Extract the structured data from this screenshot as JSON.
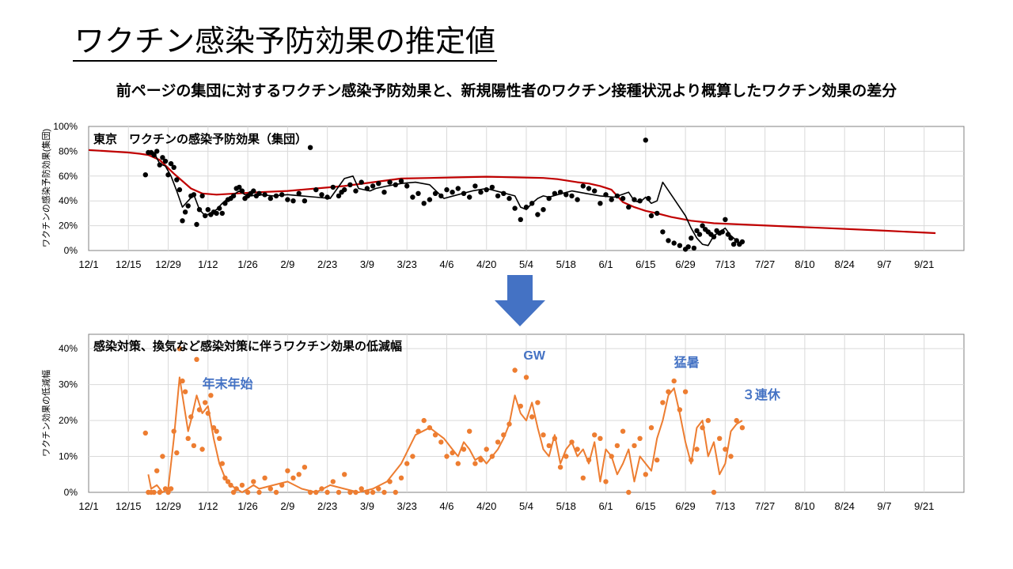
{
  "slide": {
    "title": "ワクチン感染予防効果の推定値",
    "subtitle": "前ページの集団に対するワクチン感染予防効果と、新規陽性者のワクチン接種状況より概算したワクチン効果の差分"
  },
  "colors": {
    "trend_red": "#c00000",
    "points_black": "#000000",
    "orange": "#ed7d31",
    "annotation_blue": "#4472c4",
    "arrow_blue": "#4472c4"
  },
  "arrow": {
    "icon": "down-arrow-icon"
  },
  "chart_data": [
    {
      "type": "line",
      "title": "東京　ワクチンの感染予防効果（集団）",
      "ylabel": "ワクチンの感染予防効果(集団)",
      "xlabel": "",
      "categories": [
        "12/1",
        "12/15",
        "12/29",
        "1/12",
        "1/26",
        "2/9",
        "2/23",
        "3/9",
        "3/23",
        "4/6",
        "4/20",
        "5/4",
        "5/18",
        "6/1",
        "6/15",
        "6/29",
        "7/13",
        "7/27",
        "8/10",
        "8/24",
        "9/7",
        "9/21"
      ],
      "y_ticks": [
        "0%",
        "20%",
        "40%",
        "60%",
        "80%",
        "100%"
      ],
      "ylim": [
        0,
        1
      ],
      "grid": true,
      "legend": "none",
      "series": [
        {
          "style": "line-red",
          "x": [
            0,
            14,
            18,
            21,
            25,
            30,
            36,
            40,
            45,
            52,
            60,
            70,
            80,
            90,
            100,
            110,
            120,
            130,
            140,
            150,
            160,
            165,
            172,
            176,
            180,
            184,
            188,
            192,
            196,
            200,
            205,
            212,
            220,
            240,
            260,
            280,
            298
          ],
          "values": [
            0.81,
            0.79,
            0.78,
            0.77,
            0.73,
            0.62,
            0.5,
            0.46,
            0.45,
            0.46,
            0.47,
            0.48,
            0.5,
            0.52,
            0.55,
            0.58,
            0.585,
            0.59,
            0.595,
            0.59,
            0.585,
            0.575,
            0.55,
            0.54,
            0.52,
            0.49,
            0.39,
            0.35,
            0.32,
            0.3,
            0.27,
            0.24,
            0.22,
            0.2,
            0.18,
            0.16,
            0.14
          ]
        },
        {
          "style": "line-black",
          "x": [
            21,
            23,
            25,
            27,
            29,
            31,
            33,
            35,
            37,
            39,
            41,
            43,
            45,
            47,
            49,
            51,
            53,
            55,
            57,
            60,
            65,
            70,
            75,
            80,
            85,
            90,
            93,
            95,
            97,
            99,
            101,
            105,
            110,
            115,
            120,
            125,
            130,
            135,
            140,
            145,
            150,
            152,
            154,
            156,
            158,
            160,
            162,
            165,
            170,
            175,
            180,
            185,
            190,
            192,
            194,
            196,
            198,
            200,
            202,
            205,
            210,
            212,
            214,
            216,
            218,
            220,
            222,
            224,
            226,
            228,
            230
          ],
          "values": [
            0.78,
            0.79,
            0.7,
            0.68,
            0.6,
            0.48,
            0.35,
            0.4,
            0.45,
            0.33,
            0.28,
            0.3,
            0.33,
            0.38,
            0.42,
            0.45,
            0.48,
            0.45,
            0.44,
            0.45,
            0.44,
            0.45,
            0.44,
            0.43,
            0.42,
            0.58,
            0.6,
            0.5,
            0.49,
            0.48,
            0.5,
            0.52,
            0.54,
            0.55,
            0.53,
            0.42,
            0.45,
            0.48,
            0.5,
            0.47,
            0.44,
            0.35,
            0.33,
            0.38,
            0.42,
            0.44,
            0.43,
            0.45,
            0.48,
            0.46,
            0.44,
            0.43,
            0.47,
            0.4,
            0.39,
            0.43,
            0.38,
            0.4,
            0.55,
            0.45,
            0.28,
            0.18,
            0.1,
            0.05,
            0.04,
            0.12,
            0.15,
            0.18,
            0.12,
            0.08,
            0.05
          ]
        },
        {
          "style": "points-black",
          "x": [
            20,
            21,
            22,
            23,
            24,
            25,
            26,
            27,
            28,
            29,
            30,
            31,
            32,
            33,
            34,
            35,
            36,
            37,
            38,
            39,
            40,
            41,
            42,
            43,
            44,
            45,
            46,
            47,
            48,
            49,
            50,
            51,
            52,
            53,
            54,
            55,
            56,
            57,
            58,
            59,
            60,
            62,
            64,
            66,
            68,
            70,
            72,
            74,
            76,
            78,
            80,
            82,
            84,
            86,
            88,
            89,
            90,
            92,
            94,
            96,
            98,
            100,
            102,
            104,
            106,
            108,
            110,
            112,
            114,
            116,
            118,
            120,
            122,
            124,
            126,
            128,
            130,
            132,
            134,
            136,
            138,
            140,
            142,
            144,
            146,
            148,
            150,
            152,
            154,
            156,
            158,
            160,
            162,
            164,
            166,
            168,
            170,
            172,
            174,
            176,
            178,
            180,
            182,
            184,
            186,
            188,
            190,
            192,
            194,
            196,
            197,
            198,
            200,
            202,
            204,
            206,
            208,
            210,
            211,
            212,
            213,
            214,
            215,
            216,
            217,
            218,
            219,
            220,
            221,
            222,
            223,
            224,
            225,
            226,
            227,
            228,
            229,
            230
          ],
          "values": [
            0.61,
            0.79,
            0.79,
            0.77,
            0.8,
            0.69,
            0.75,
            0.72,
            0.61,
            0.7,
            0.67,
            0.57,
            0.49,
            0.24,
            0.31,
            0.36,
            0.44,
            0.45,
            0.21,
            0.33,
            0.44,
            0.28,
            0.33,
            0.29,
            0.31,
            0.3,
            0.34,
            0.3,
            0.38,
            0.41,
            0.42,
            0.44,
            0.5,
            0.51,
            0.48,
            0.42,
            0.44,
            0.46,
            0.48,
            0.44,
            0.46,
            0.45,
            0.42,
            0.44,
            0.45,
            0.41,
            0.4,
            0.46,
            0.4,
            0.83,
            0.49,
            0.45,
            0.43,
            0.51,
            0.44,
            0.47,
            0.49,
            0.53,
            0.48,
            0.55,
            0.5,
            0.52,
            0.54,
            0.47,
            0.55,
            0.53,
            0.56,
            0.52,
            0.43,
            0.46,
            0.38,
            0.41,
            0.46,
            0.44,
            0.49,
            0.47,
            0.5,
            0.46,
            0.43,
            0.52,
            0.47,
            0.49,
            0.51,
            0.44,
            0.46,
            0.42,
            0.34,
            0.25,
            0.35,
            0.38,
            0.29,
            0.33,
            0.42,
            0.46,
            0.47,
            0.45,
            0.44,
            0.41,
            0.52,
            0.5,
            0.48,
            0.38,
            0.45,
            0.41,
            0.44,
            0.42,
            0.35,
            0.41,
            0.4,
            0.89,
            0.42,
            0.28,
            0.3,
            0.15,
            0.08,
            0.06,
            0.04,
            0.01,
            0.03,
            0.1,
            0.02,
            0.16,
            0.13,
            0.2,
            0.17,
            0.15,
            0.13,
            0.11,
            0.16,
            0.14,
            0.15,
            0.25,
            0.13,
            0.1,
            0.05,
            0.08,
            0.05,
            0.07
          ]
        }
      ]
    },
    {
      "type": "line",
      "title": "感染対策、換気など感染対策に伴うワクチン効果の低減幅",
      "ylabel": "ワクチン効果の低減幅",
      "xlabel": "",
      "categories": [
        "12/1",
        "12/15",
        "12/29",
        "1/12",
        "1/26",
        "2/9",
        "2/23",
        "3/9",
        "3/23",
        "4/6",
        "4/20",
        "5/4",
        "5/18",
        "6/1",
        "6/15",
        "6/29",
        "7/13",
        "7/27",
        "8/10",
        "8/24",
        "9/7",
        "9/21"
      ],
      "y_ticks": [
        "0%",
        "10%",
        "20%",
        "30%",
        "40%"
      ],
      "ylim": [
        0,
        0.44
      ],
      "grid": true,
      "legend": "none",
      "annotations": [
        {
          "text": "年末年始",
          "x": 40,
          "y": 0.29
        },
        {
          "text": "GW",
          "x": 153,
          "y": 0.37
        },
        {
          "text": "猛暑",
          "x": 206,
          "y": 0.35
        },
        {
          "text": "３連休",
          "x": 230,
          "y": 0.26
        }
      ],
      "series": [
        {
          "style": "line-orange",
          "x": [
            21,
            22,
            24,
            26,
            28,
            30,
            32,
            34,
            35,
            36,
            38,
            40,
            42,
            44,
            46,
            48,
            50,
            52,
            54,
            56,
            58,
            60,
            65,
            70,
            75,
            80,
            85,
            90,
            95,
            100,
            105,
            110,
            115,
            120,
            125,
            128,
            130,
            132,
            134,
            136,
            138,
            140,
            142,
            144,
            146,
            148,
            150,
            152,
            154,
            156,
            158,
            160,
            162,
            164,
            166,
            168,
            170,
            172,
            174,
            176,
            178,
            180,
            182,
            184,
            186,
            188,
            190,
            192,
            194,
            196,
            198,
            200,
            202,
            204,
            206,
            208,
            210,
            212,
            214,
            216,
            218,
            220,
            222,
            224,
            226,
            228,
            230
          ],
          "values": [
            0.05,
            0.01,
            0.02,
            0.0,
            0.01,
            0.15,
            0.32,
            0.22,
            0.17,
            0.2,
            0.27,
            0.22,
            0.24,
            0.15,
            0.08,
            0.04,
            0.02,
            0.01,
            0.0,
            0.01,
            0.02,
            0.01,
            0.02,
            0.03,
            0.01,
            0.0,
            0.02,
            0.01,
            0.0,
            0.01,
            0.03,
            0.08,
            0.16,
            0.18,
            0.15,
            0.12,
            0.1,
            0.14,
            0.12,
            0.09,
            0.1,
            0.08,
            0.1,
            0.12,
            0.15,
            0.19,
            0.27,
            0.22,
            0.2,
            0.25,
            0.18,
            0.12,
            0.1,
            0.16,
            0.08,
            0.12,
            0.14,
            0.1,
            0.12,
            0.08,
            0.14,
            0.03,
            0.12,
            0.1,
            0.05,
            0.08,
            0.12,
            0.03,
            0.1,
            0.08,
            0.06,
            0.15,
            0.2,
            0.27,
            0.29,
            0.22,
            0.14,
            0.08,
            0.18,
            0.2,
            0.1,
            0.14,
            0.05,
            0.08,
            0.17,
            0.19,
            0.2
          ]
        },
        {
          "style": "points-orange",
          "x": [
            20,
            21,
            22,
            23,
            24,
            25,
            26,
            27,
            28,
            29,
            30,
            31,
            32,
            33,
            34,
            35,
            36,
            37,
            38,
            39,
            40,
            41,
            42,
            43,
            44,
            45,
            46,
            47,
            48,
            49,
            50,
            51,
            52,
            54,
            56,
            58,
            60,
            62,
            64,
            66,
            68,
            70,
            72,
            74,
            76,
            78,
            80,
            82,
            84,
            86,
            88,
            90,
            92,
            94,
            96,
            98,
            100,
            102,
            104,
            106,
            108,
            110,
            112,
            114,
            116,
            118,
            120,
            122,
            124,
            126,
            128,
            130,
            132,
            134,
            136,
            138,
            140,
            142,
            144,
            146,
            148,
            150,
            152,
            154,
            156,
            158,
            160,
            162,
            164,
            166,
            168,
            170,
            172,
            174,
            176,
            178,
            180,
            182,
            184,
            186,
            188,
            190,
            192,
            194,
            196,
            198,
            200,
            202,
            204,
            206,
            208,
            210,
            212,
            214,
            216,
            218,
            220,
            222,
            224,
            226,
            228,
            230
          ],
          "values": [
            0.165,
            0.0,
            0.0,
            0.0,
            0.06,
            0.0,
            0.1,
            0.01,
            0.0,
            0.01,
            0.17,
            0.11,
            0.4,
            0.31,
            0.28,
            0.15,
            0.21,
            0.13,
            0.37,
            0.23,
            0.12,
            0.25,
            0.22,
            0.27,
            0.18,
            0.17,
            0.15,
            0.08,
            0.04,
            0.03,
            0.02,
            0.0,
            0.01,
            0.02,
            0.0,
            0.03,
            0.0,
            0.04,
            0.01,
            0.0,
            0.02,
            0.06,
            0.04,
            0.05,
            0.07,
            0.0,
            0.0,
            0.01,
            0.0,
            0.03,
            0.0,
            0.05,
            0.0,
            0.0,
            0.01,
            0.0,
            0.0,
            0.01,
            0.0,
            0.03,
            0.0,
            0.04,
            0.08,
            0.1,
            0.17,
            0.2,
            0.18,
            0.16,
            0.14,
            0.1,
            0.11,
            0.08,
            0.12,
            0.17,
            0.08,
            0.09,
            0.12,
            0.1,
            0.14,
            0.16,
            0.19,
            0.34,
            0.24,
            0.32,
            0.21,
            0.25,
            0.16,
            0.13,
            0.15,
            0.07,
            0.1,
            0.14,
            0.12,
            0.04,
            0.09,
            0.16,
            0.15,
            0.03,
            0.1,
            0.13,
            0.17,
            0.0,
            0.13,
            0.15,
            0.05,
            0.18,
            0.09,
            0.25,
            0.28,
            0.31,
            0.23,
            0.28,
            0.09,
            0.12,
            0.18,
            0.2,
            0.0,
            0.15,
            0.12,
            0.1,
            0.2,
            0.18
          ]
        }
      ]
    }
  ]
}
